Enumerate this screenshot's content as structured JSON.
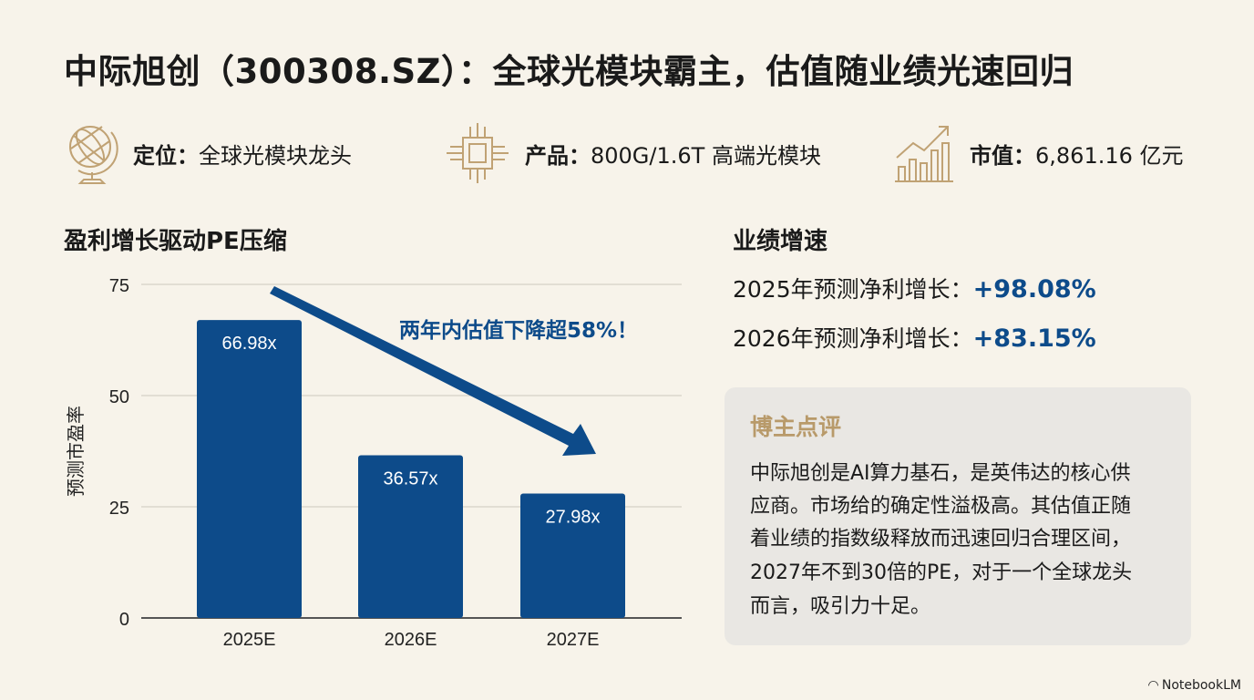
{
  "title": "中际旭创（300308.SZ）：全球光模块霸主，估值随业绩光速回归",
  "info": [
    {
      "icon": "globe-icon",
      "label": "定位：",
      "value": "全球光模块龙头"
    },
    {
      "icon": "chip-icon",
      "label": "产品：",
      "value": "800G/1.6T 高端光模块"
    },
    {
      "icon": "growth-chart-icon",
      "label": "市值：",
      "value": "6,861.16 亿元"
    }
  ],
  "chart_title": "盈利增长驱动PE压缩",
  "chart_data": {
    "type": "bar",
    "categories": [
      "2025E",
      "2026E",
      "2027E"
    ],
    "values": [
      66.98,
      36.57,
      27.98
    ],
    "data_labels": [
      "66.98x",
      "36.57x",
      "27.98x"
    ],
    "ylabel": "预测市盈率",
    "xlabel": "",
    "ylim": [
      0,
      75
    ],
    "yticks": [
      "0",
      "25",
      "50",
      "75"
    ],
    "grid": true,
    "annotation": "两年内估值下降超58%！",
    "bar_color": "#0d4b8a"
  },
  "growth": {
    "title": "业绩增速",
    "rows": [
      {
        "label": "2025年预测净利增长：",
        "value": "+98.08%"
      },
      {
        "label": "2026年预测净利增长：",
        "value": "+83.15%"
      }
    ]
  },
  "comment": {
    "title": "博主点评",
    "lines": [
      "中际旭创是AI算力基石，是英伟达的核心供",
      "应商。市场给的确定性溢极高。其估值正随",
      "着业绩的指数级释放而迅速回归合理区间，",
      "2027年不到30倍的PE，对于一个全球龙头",
      "而言，吸引力十足。"
    ]
  },
  "brand": "NotebookLM",
  "colors": {
    "accent": "#0d4b8a",
    "gold": "#b89a6a",
    "background": "#f7f3ea"
  }
}
